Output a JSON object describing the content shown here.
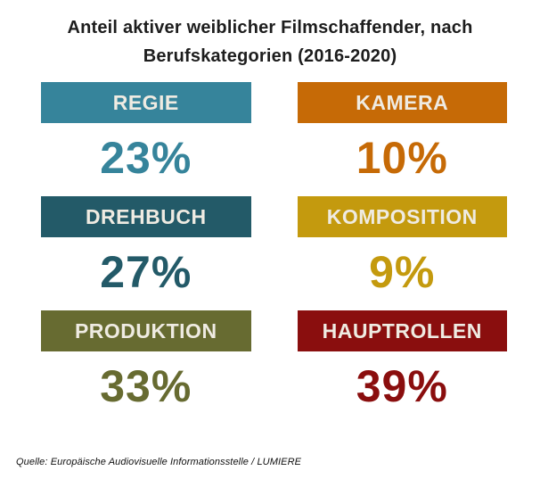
{
  "title": {
    "line1": "Anteil aktiver weiblicher Filmschaffender, nach",
    "line2": "Berufskategorien (2016-2020)"
  },
  "colors": {
    "header_text": "#efebe2",
    "title_text": "#1d1d1d",
    "background": "#ffffff"
  },
  "cards": [
    {
      "label": "REGIE",
      "value": "23%",
      "color": "#36849b"
    },
    {
      "label": "KAMERA",
      "value": "10%",
      "color": "#c66a06"
    },
    {
      "label": "DREHBUCH",
      "value": "27%",
      "color": "#235a68"
    },
    {
      "label": "KOMPOSITION",
      "value": "9%",
      "color": "#c49a0e"
    },
    {
      "label": "PRODUKTION",
      "value": "33%",
      "color": "#676b31"
    },
    {
      "label": "HAUPTROLLEN",
      "value": "39%",
      "color": "#8a0e0e"
    }
  ],
  "source": "Quelle: Europäische Audiovisuelle Informationsstelle / LUMIERE",
  "chart_data": {
    "type": "table",
    "title": "Anteil aktiver weiblicher Filmschaffender, nach Berufskategorien (2016-2020)",
    "categories": [
      "REGIE",
      "KAMERA",
      "DREHBUCH",
      "KOMPOSITION",
      "PRODUKTION",
      "HAUPTROLLEN"
    ],
    "values": [
      23,
      10,
      27,
      9,
      33,
      39
    ],
    "unit": "%",
    "layout": "2-column grid of KPI cards, values shown as large percentages",
    "source": "Quelle: Europäische Audiovisuelle Informationsstelle / LUMIERE"
  }
}
